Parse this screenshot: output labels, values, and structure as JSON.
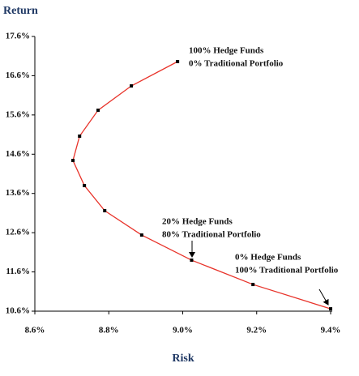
{
  "chart_data": {
    "type": "line",
    "y_label": "Return",
    "x_label": "Risk",
    "x": [
      9.4,
      9.19,
      9.024,
      8.889,
      8.789,
      8.734,
      8.703,
      8.721,
      8.771,
      8.861,
      8.986
    ],
    "values": [
      10.66,
      11.28,
      11.9,
      12.54,
      13.16,
      13.8,
      14.44,
      15.06,
      15.72,
      16.34,
      16.96
    ],
    "color": "#e8332a",
    "marker_color": "#000000",
    "xlim": [
      8.6,
      9.4
    ],
    "xticks": [
      {
        "value": 8.6,
        "label": "8.6%"
      },
      {
        "value": 8.8,
        "label": "8.8%"
      },
      {
        "value": 9.0,
        "label": "9.0%"
      },
      {
        "value": 9.2,
        "label": "9.2%"
      },
      {
        "value": 9.4,
        "label": "9.4%"
      }
    ],
    "ylim": [
      10.6,
      17.6
    ],
    "yticks": [
      {
        "value": 10.6,
        "label": "10.6%"
      },
      {
        "value": 11.6,
        "label": "11.6%"
      },
      {
        "value": 12.6,
        "label": "12.6%"
      },
      {
        "value": 13.6,
        "label": "13.6%"
      },
      {
        "value": 14.6,
        "label": "14.6%"
      },
      {
        "value": 15.6,
        "label": "15.6%"
      },
      {
        "value": 16.6,
        "label": "16.6%"
      },
      {
        "value": 17.6,
        "label": "17.6%"
      }
    ],
    "annotations": [
      {
        "lines": [
          "100% Hedge Funds",
          " 0% Traditional Portfolio"
        ]
      },
      {
        "lines": [
          "20% Hedge Funds",
          "80% Traditional Portfolio"
        ]
      },
      {
        "lines": [
          "0% Hedge Funds",
          "100% Traditional Portfolio"
        ]
      }
    ]
  }
}
